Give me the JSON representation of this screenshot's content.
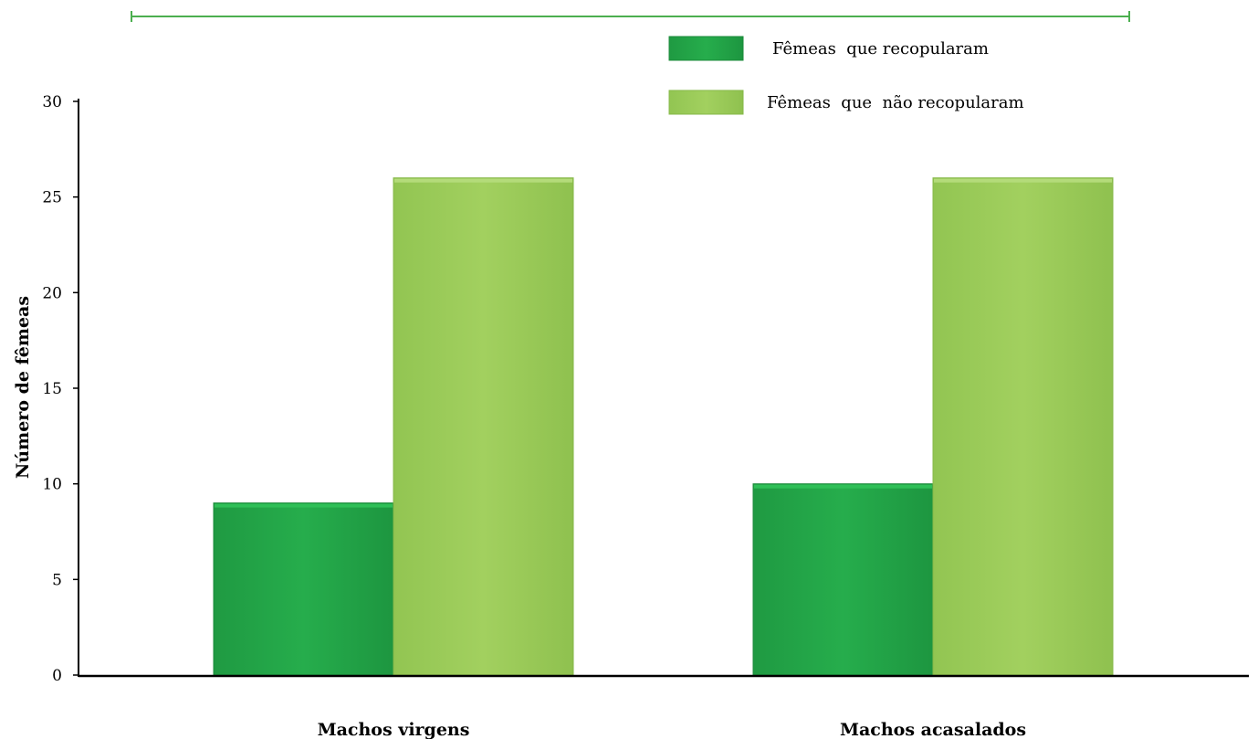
{
  "chart_data": {
    "type": "bar",
    "title": "",
    "xlabel": "",
    "ylabel": "Número de fêmeas",
    "categories": [
      "Machos virgens",
      "Machos acasalados"
    ],
    "series": [
      {
        "name": "Fêmeas  que recopularam",
        "values": [
          9,
          10
        ],
        "color": "#24a84a"
      },
      {
        "name": "Fêmeas  que  não recopularam",
        "values": [
          26,
          26
        ],
        "color": "#9ecd5c"
      }
    ],
    "ylim": [
      0,
      30
    ],
    "yticks": [
      0,
      5,
      10,
      15,
      20,
      25,
      30
    ],
    "grid": false,
    "legend_position": "top-right",
    "top_rule_color": "#4caf50"
  }
}
